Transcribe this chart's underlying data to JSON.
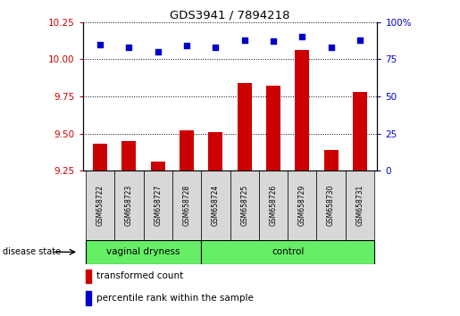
{
  "title": "GDS3941 / 7894218",
  "samples": [
    "GSM658722",
    "GSM658723",
    "GSM658727",
    "GSM658728",
    "GSM658724",
    "GSM658725",
    "GSM658726",
    "GSM658729",
    "GSM658730",
    "GSM658731"
  ],
  "bar_values": [
    9.43,
    9.45,
    9.31,
    9.52,
    9.51,
    9.84,
    9.82,
    10.06,
    9.39,
    9.78
  ],
  "dot_values": [
    85,
    83,
    80,
    84,
    83,
    88,
    87,
    90,
    83,
    88
  ],
  "groups": [
    {
      "label": "vaginal dryness",
      "start": 0,
      "end": 4
    },
    {
      "label": "control",
      "start": 4,
      "end": 10
    }
  ],
  "ylim_left": [
    9.25,
    10.25
  ],
  "ylim_right": [
    0,
    100
  ],
  "yticks_left": [
    9.25,
    9.5,
    9.75,
    10.0,
    10.25
  ],
  "yticks_right": [
    0,
    25,
    50,
    75,
    100
  ],
  "bar_color": "#cc0000",
  "dot_color": "#0000cc",
  "group_color": "#66ee66",
  "axis_bg_color": "#ffffff",
  "sample_cell_color": "#d8d8d8",
  "legend_red_label": "transformed count",
  "legend_blue_label": "percentile rank within the sample",
  "disease_state_label": "disease state",
  "ytick_right_labels": [
    "0",
    "25",
    "50",
    "75",
    "100%"
  ]
}
